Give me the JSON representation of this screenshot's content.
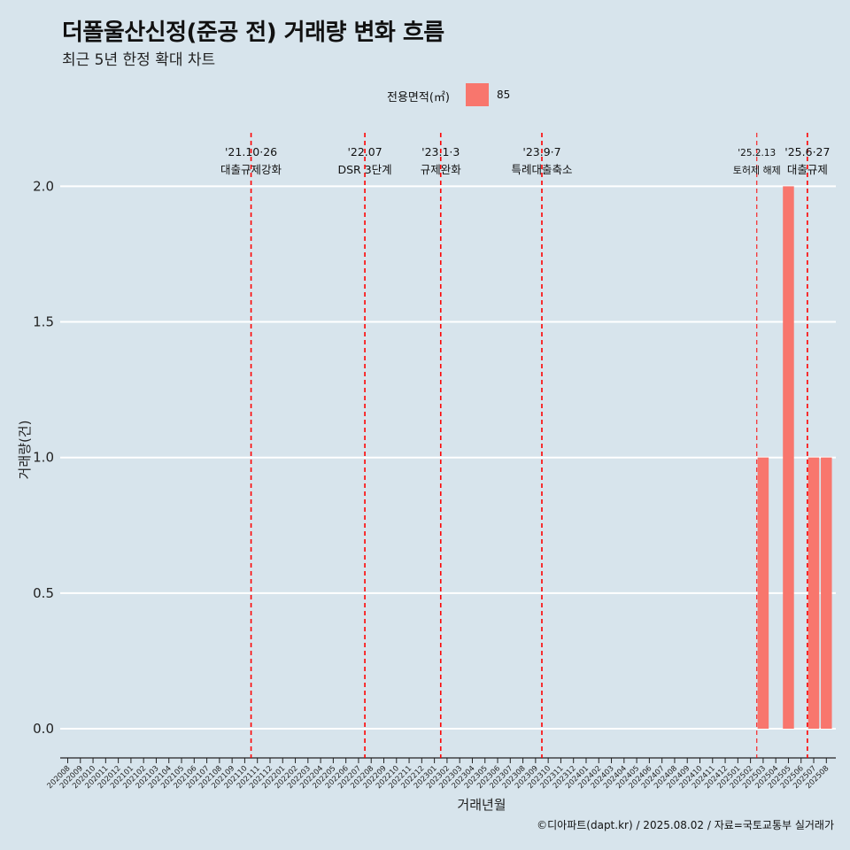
{
  "header": {
    "title": "더폴울산신정(준공 전) 거래량 변화 흐름",
    "subtitle": "최근 5년 한정 확대 차트"
  },
  "legend": {
    "title": "전용면적(㎡)",
    "entries": [
      {
        "label": "85",
        "color": "#F8766D"
      }
    ]
  },
  "credit": "©디아파트(dapt.kr) / 2025.08.02 / 자료=국토교통부 실거래가",
  "chart_data": {
    "type": "bar",
    "title": "더폴울산신정(준공 전) 거래량 변화 흐름",
    "subtitle": "최근 5년 한정 확대 차트",
    "xlabel": "거래년월",
    "ylabel": "거래량(건)",
    "ylim": [
      -0.09,
      2.2
    ],
    "yticks": [
      0.0,
      0.5,
      1.0,
      1.5,
      2.0
    ],
    "ytick_labels": [
      "0.0",
      "0.5",
      "1.0",
      "1.5",
      "2.0"
    ],
    "grid": true,
    "legend_position": "top",
    "categories": [
      "202008",
      "202009",
      "202010",
      "202011",
      "202012",
      "202101",
      "202102",
      "202103",
      "202104",
      "202105",
      "202106",
      "202107",
      "202108",
      "202109",
      "202110",
      "202111",
      "202112",
      "202201",
      "202202",
      "202203",
      "202204",
      "202205",
      "202206",
      "202207",
      "202208",
      "202209",
      "202210",
      "202211",
      "202212",
      "202301",
      "202302",
      "202303",
      "202304",
      "202305",
      "202306",
      "202307",
      "202308",
      "202309",
      "202310",
      "202311",
      "202312",
      "202401",
      "202402",
      "202403",
      "202404",
      "202405",
      "202406",
      "202407",
      "202408",
      "202409",
      "202410",
      "202411",
      "202412",
      "202501",
      "202502",
      "202503",
      "202504",
      "202505",
      "202506",
      "202507",
      "202508"
    ],
    "series": [
      {
        "name": "85",
        "color": "#F8766D",
        "values": [
          0,
          0,
          0,
          0,
          0,
          0,
          0,
          0,
          0,
          0,
          0,
          0,
          0,
          0,
          0,
          0,
          0,
          0,
          0,
          0,
          0,
          0,
          0,
          0,
          0,
          0,
          0,
          0,
          0,
          0,
          0,
          0,
          0,
          0,
          0,
          0,
          0,
          0,
          0,
          0,
          0,
          0,
          0,
          0,
          0,
          0,
          0,
          0,
          0,
          0,
          0,
          0,
          0,
          0,
          0,
          1,
          0,
          2,
          0,
          1,
          1
        ]
      }
    ],
    "annotations": [
      {
        "x": 14.5,
        "date": "'21.10·26",
        "label": "대출규제강화",
        "size": "normal"
      },
      {
        "x": 23.5,
        "date": "'22.07",
        "label": "DSR 3단계",
        "size": "normal"
      },
      {
        "x": 29.5,
        "date": "'23.1·3",
        "label": "규제완화",
        "size": "normal"
      },
      {
        "x": 37.5,
        "date": "'23.9·7",
        "label": "특례대출축소",
        "size": "normal"
      },
      {
        "x": 54.5,
        "date": "'25.2.13",
        "label": "토허제 해제",
        "size": "small"
      },
      {
        "x": 58.5,
        "date": "'25.6·27",
        "label": "대출규제",
        "size": "normal"
      }
    ]
  }
}
